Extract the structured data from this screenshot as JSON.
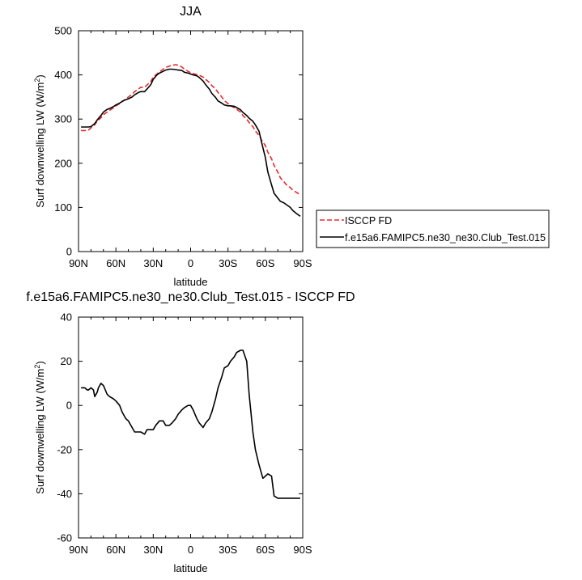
{
  "chart_data": [
    {
      "type": "line",
      "title": "JJA",
      "xlabel": "latitude",
      "ylabel": "Surf downwelling LW (W/m",
      "ylabel_sup": "2",
      "ylabel_tail": ")",
      "x_tick_labels": [
        "90N",
        "60N",
        "30N",
        "0",
        "30S",
        "60S",
        "90S"
      ],
      "x_tick_values": [
        90,
        60,
        30,
        0,
        -30,
        -60,
        -90
      ],
      "xlim": [
        90,
        -90
      ],
      "ylim": [
        0,
        500
      ],
      "y_ticks": [
        0,
        100,
        200,
        300,
        400,
        500
      ],
      "legend_position": "right",
      "legend": [
        {
          "name": "ISCCP FD",
          "color": "#e8282b",
          "dash": true
        },
        {
          "name": "f.e15a6.FAMIPC5.ne30_ne30.Club_Test.015",
          "color": "#000000",
          "dash": false
        }
      ],
      "series": [
        {
          "name": "ISCCP FD",
          "color": "#e8282b",
          "dash": true,
          "x": [
            88,
            85,
            82,
            80,
            77,
            75,
            72,
            70,
            67,
            65,
            62,
            60,
            57,
            55,
            52,
            50,
            47,
            45,
            42,
            40,
            37,
            35,
            32,
            30,
            27,
            25,
            22,
            20,
            17,
            15,
            12,
            10,
            7,
            5,
            2,
            0,
            -2,
            -5,
            -7,
            -10,
            -12,
            -15,
            -17,
            -20,
            -22,
            -25,
            -27,
            -30,
            -32,
            -35,
            -37,
            -40,
            -42,
            -45,
            -47,
            -50,
            -52,
            -55,
            -57,
            -60,
            -62,
            -65,
            -67,
            -70,
            -72,
            -75,
            -77,
            -80,
            -82,
            -85,
            -88
          ],
          "y": [
            274,
            274,
            275,
            280,
            287,
            295,
            303,
            310,
            316,
            320,
            325,
            330,
            335,
            340,
            345,
            350,
            356,
            362,
            368,
            372,
            372,
            377,
            385,
            395,
            402,
            407,
            413,
            417,
            420,
            422,
            423,
            422,
            418,
            413,
            408,
            405,
            403,
            401,
            399,
            395,
            390,
            383,
            376,
            368,
            360,
            350,
            342,
            335,
            330,
            326,
            322,
            316,
            308,
            300,
            292,
            283,
            273,
            263,
            252,
            240,
            225,
            210,
            195,
            180,
            167,
            158,
            151,
            145,
            139,
            134,
            128
          ]
        },
        {
          "name": "f.e15a6.FAMIPC5.ne30_ne30.Club_Test.015",
          "color": "#000000",
          "dash": false,
          "x": [
            88,
            85,
            82,
            80,
            77,
            75,
            72,
            70,
            67,
            65,
            62,
            60,
            57,
            55,
            52,
            50,
            47,
            45,
            42,
            40,
            37,
            35,
            32,
            30,
            27,
            25,
            22,
            20,
            17,
            15,
            12,
            10,
            7,
            5,
            2,
            0,
            -2,
            -5,
            -7,
            -10,
            -12,
            -15,
            -17,
            -20,
            -22,
            -25,
            -27,
            -30,
            -32,
            -35,
            -37,
            -40,
            -42,
            -45,
            -47,
            -50,
            -52,
            -55,
            -57,
            -60,
            -62,
            -65,
            -67,
            -70,
            -72,
            -75,
            -77,
            -80,
            -82,
            -85,
            -88
          ],
          "y": [
            282,
            282,
            282,
            283,
            290,
            298,
            308,
            316,
            322,
            324,
            328,
            332,
            336,
            340,
            344,
            346,
            350,
            355,
            360,
            362,
            362,
            368,
            378,
            390,
            400,
            404,
            408,
            411,
            413,
            413,
            412,
            411,
            410,
            406,
            404,
            402,
            400,
            398,
            394,
            386,
            378,
            368,
            358,
            349,
            341,
            336,
            332,
            330,
            330,
            329,
            326,
            321,
            315,
            308,
            302,
            295,
            287,
            272,
            247,
            213,
            180,
            151,
            132,
            121,
            114,
            110,
            106,
            100,
            93,
            86,
            80
          ]
        }
      ]
    },
    {
      "type": "line",
      "title": "f.e15a6.FAMIPC5.ne30_ne30.Club_Test.015 - ISCCP FD",
      "xlabel": "latitude",
      "ylabel": "Surf downwelling LW (W/m",
      "ylabel_sup": "2",
      "ylabel_tail": ")",
      "x_tick_labels": [
        "90N",
        "60N",
        "30N",
        "0",
        "30S",
        "60S",
        "90S"
      ],
      "x_tick_values": [
        90,
        60,
        30,
        0,
        -30,
        -60,
        -90
      ],
      "xlim": [
        90,
        -90
      ],
      "ylim": [
        -60,
        40
      ],
      "y_ticks": [
        -60,
        -40,
        -20,
        0,
        20,
        40
      ],
      "series": [
        {
          "color": "#000000",
          "dash": false,
          "x": [
            88,
            85,
            83,
            82,
            80,
            78,
            77,
            75,
            74,
            72,
            70,
            67,
            65,
            62,
            60,
            57,
            55,
            52,
            50,
            47,
            45,
            42,
            40,
            37,
            35,
            33,
            30,
            28,
            25,
            22,
            20,
            17,
            15,
            12,
            10,
            7,
            5,
            2,
            0,
            -2,
            -5,
            -7,
            -10,
            -12,
            -15,
            -17,
            -20,
            -22,
            -25,
            -27,
            -30,
            -32,
            -35,
            -37,
            -40,
            -42,
            -45,
            -47,
            -50,
            -52,
            -55,
            -57,
            -58,
            -60,
            -62,
            -65,
            -67,
            -70,
            -72,
            -75,
            -77,
            -80,
            -82,
            -85,
            -88
          ],
          "y": [
            8,
            8,
            7,
            7,
            8,
            7,
            4,
            6,
            8,
            10,
            9,
            5,
            4,
            3,
            2,
            0,
            -3,
            -6,
            -7,
            -10,
            -12,
            -12,
            -12,
            -13,
            -11,
            -11,
            -11,
            -9,
            -7,
            -7,
            -9,
            -9,
            -8,
            -6,
            -4,
            -2,
            -1,
            0,
            0,
            -2,
            -6,
            -8,
            -10,
            -8,
            -6,
            -3,
            3,
            8,
            13,
            17,
            18,
            20,
            22,
            24,
            25,
            25,
            20,
            5,
            -12,
            -20,
            -27,
            -31,
            -33,
            -32,
            -31,
            -32,
            -41,
            -42,
            -42,
            -42,
            -42,
            -42,
            -42,
            -42,
            -42
          ]
        }
      ]
    }
  ]
}
